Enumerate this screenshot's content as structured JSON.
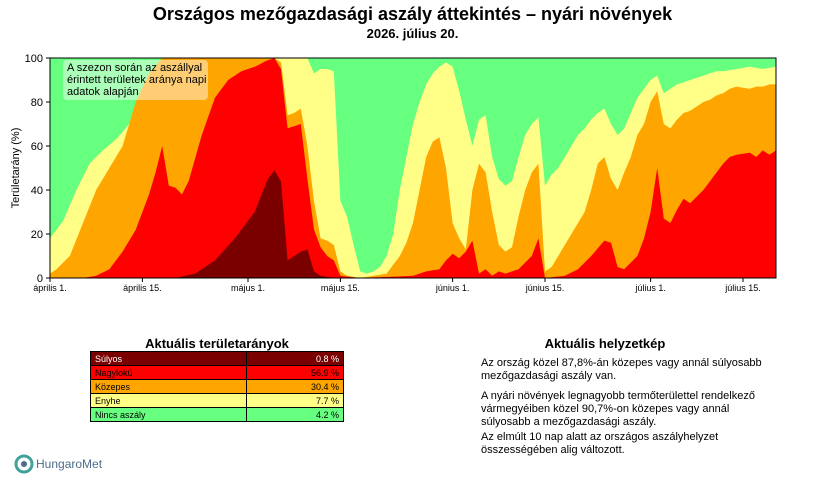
{
  "header": {
    "title": "Országos mezőgazdasági aszály áttekintés – nyári növények",
    "date": "2026. július 20."
  },
  "chart_data": {
    "type": "area",
    "stacked": true,
    "ylabel": "Területarány (%)",
    "ylim": [
      0,
      100
    ],
    "yticks": [
      0,
      20,
      40,
      60,
      80,
      100
    ],
    "xticks": [
      {
        "day": 1,
        "label": "április 1."
      },
      {
        "day": 15,
        "label": "április 15."
      },
      {
        "day": 31,
        "label": "május 1."
      },
      {
        "day": 45,
        "label": "május 15."
      },
      {
        "day": 62,
        "label": "június 1."
      },
      {
        "day": 76,
        "label": "június 15."
      },
      {
        "day": 92,
        "label": "július 1."
      },
      {
        "day": 106,
        "label": "július 15."
      }
    ],
    "annotation": "A szezon során az aszállyal érintett területek aránya napi adatok alapján",
    "x_start": 1,
    "x_end": 111,
    "series": [
      {
        "name": "Súlyos",
        "color": "#7a0000",
        "knots": [
          [
            1,
            0
          ],
          [
            20,
            0
          ],
          [
            23,
            2
          ],
          [
            26,
            8
          ],
          [
            29,
            18
          ],
          [
            32,
            30
          ],
          [
            34,
            45
          ],
          [
            35,
            49
          ],
          [
            36,
            44
          ],
          [
            37,
            8
          ],
          [
            39,
            12
          ],
          [
            40,
            13
          ],
          [
            41,
            3
          ],
          [
            42,
            1
          ],
          [
            44,
            0
          ],
          [
            111,
            0
          ]
        ]
      },
      {
        "name": "Nagyloku",
        "color": "#ff0000",
        "knots": [
          [
            1,
            0
          ],
          [
            6,
            0
          ],
          [
            8,
            1
          ],
          [
            10,
            4
          ],
          [
            12,
            12
          ],
          [
            14,
            22
          ],
          [
            16,
            38
          ],
          [
            17,
            48
          ],
          [
            18,
            60
          ],
          [
            19,
            42
          ],
          [
            20,
            41
          ],
          [
            21,
            38
          ],
          [
            22,
            44
          ],
          [
            24,
            65
          ],
          [
            26,
            82
          ],
          [
            28,
            90
          ],
          [
            30,
            94
          ],
          [
            32,
            96
          ],
          [
            34,
            99
          ],
          [
            35,
            100
          ],
          [
            36,
            95
          ],
          [
            37,
            68
          ],
          [
            38,
            69
          ],
          [
            39,
            70
          ],
          [
            40,
            45
          ],
          [
            41,
            22
          ],
          [
            42,
            14
          ],
          [
            43,
            10
          ],
          [
            44,
            8
          ],
          [
            45,
            1
          ],
          [
            48,
            0
          ],
          [
            56,
            1
          ],
          [
            58,
            3
          ],
          [
            60,
            4
          ],
          [
            61,
            8
          ],
          [
            62,
            11
          ],
          [
            63,
            9
          ],
          [
            64,
            12
          ],
          [
            65,
            17
          ],
          [
            66,
            2
          ],
          [
            67,
            4
          ],
          [
            68,
            1
          ],
          [
            69,
            3
          ],
          [
            70,
            2
          ],
          [
            72,
            4
          ],
          [
            74,
            10
          ],
          [
            75,
            18
          ],
          [
            76,
            0
          ],
          [
            79,
            1
          ],
          [
            81,
            4
          ],
          [
            83,
            10
          ],
          [
            85,
            17
          ],
          [
            86,
            16
          ],
          [
            87,
            5
          ],
          [
            88,
            4
          ],
          [
            90,
            10
          ],
          [
            91,
            18
          ],
          [
            92,
            30
          ],
          [
            93,
            50
          ],
          [
            94,
            27
          ],
          [
            95,
            25
          ],
          [
            96,
            31
          ],
          [
            97,
            36
          ],
          [
            98,
            34
          ],
          [
            99,
            37
          ],
          [
            100,
            40
          ],
          [
            101,
            44
          ],
          [
            102,
            48
          ],
          [
            103,
            52
          ],
          [
            104,
            55
          ],
          [
            105,
            56
          ],
          [
            107,
            57
          ],
          [
            108,
            55
          ],
          [
            109,
            58
          ],
          [
            110,
            56
          ],
          [
            111,
            58
          ]
        ]
      },
      {
        "name": "Közepes",
        "color": "#ffa500",
        "knots": [
          [
            1,
            2
          ],
          [
            2,
            4
          ],
          [
            4,
            10
          ],
          [
            6,
            25
          ],
          [
            8,
            40
          ],
          [
            10,
            50
          ],
          [
            12,
            60
          ],
          [
            14,
            80
          ],
          [
            16,
            93
          ],
          [
            18,
            100
          ],
          [
            35,
            100
          ],
          [
            36,
            98
          ],
          [
            37,
            74
          ],
          [
            38,
            75
          ],
          [
            39,
            77
          ],
          [
            40,
            60
          ],
          [
            41,
            35
          ],
          [
            42,
            18
          ],
          [
            43,
            17
          ],
          [
            44,
            15
          ],
          [
            45,
            3
          ],
          [
            46,
            1
          ],
          [
            48,
            0
          ],
          [
            52,
            2
          ],
          [
            53,
            6
          ],
          [
            54,
            10
          ],
          [
            55,
            16
          ],
          [
            56,
            25
          ],
          [
            57,
            40
          ],
          [
            58,
            55
          ],
          [
            59,
            62
          ],
          [
            60,
            64
          ],
          [
            61,
            50
          ],
          [
            62,
            25
          ],
          [
            63,
            18
          ],
          [
            64,
            13
          ],
          [
            65,
            40
          ],
          [
            66,
            52
          ],
          [
            67,
            48
          ],
          [
            68,
            30
          ],
          [
            69,
            15
          ],
          [
            70,
            12
          ],
          [
            71,
            14
          ],
          [
            72,
            28
          ],
          [
            73,
            40
          ],
          [
            74,
            48
          ],
          [
            75,
            52
          ],
          [
            76,
            3
          ],
          [
            77,
            5
          ],
          [
            78,
            10
          ],
          [
            79,
            15
          ],
          [
            80,
            20
          ],
          [
            81,
            25
          ],
          [
            82,
            30
          ],
          [
            83,
            40
          ],
          [
            84,
            52
          ],
          [
            85,
            55
          ],
          [
            86,
            45
          ],
          [
            87,
            40
          ],
          [
            88,
            48
          ],
          [
            89,
            55
          ],
          [
            90,
            65
          ],
          [
            91,
            70
          ],
          [
            92,
            80
          ],
          [
            93,
            85
          ],
          [
            94,
            70
          ],
          [
            95,
            68
          ],
          [
            96,
            72
          ],
          [
            97,
            75
          ],
          [
            98,
            76
          ],
          [
            99,
            78
          ],
          [
            100,
            80
          ],
          [
            101,
            81
          ],
          [
            102,
            83
          ],
          [
            103,
            84
          ],
          [
            104,
            86
          ],
          [
            105,
            87
          ],
          [
            107,
            86
          ],
          [
            108,
            87
          ],
          [
            109,
            87
          ],
          [
            110,
            88
          ],
          [
            111,
            88
          ]
        ]
      },
      {
        "name": "Enyhe",
        "color": "#ffff88",
        "knots": [
          [
            1,
            18
          ],
          [
            3,
            26
          ],
          [
            5,
            40
          ],
          [
            7,
            52
          ],
          [
            9,
            58
          ],
          [
            11,
            63
          ],
          [
            13,
            70
          ],
          [
            15,
            78
          ],
          [
            17,
            85
          ],
          [
            19,
            92
          ],
          [
            21,
            96
          ],
          [
            23,
            100
          ],
          [
            40,
            100
          ],
          [
            41,
            93
          ],
          [
            42,
            95
          ],
          [
            43,
            95
          ],
          [
            44,
            94
          ],
          [
            45,
            35
          ],
          [
            46,
            28
          ],
          [
            47,
            15
          ],
          [
            48,
            3
          ],
          [
            49,
            2
          ],
          [
            50,
            3
          ],
          [
            51,
            5
          ],
          [
            52,
            10
          ],
          [
            53,
            20
          ],
          [
            54,
            40
          ],
          [
            55,
            55
          ],
          [
            56,
            70
          ],
          [
            57,
            80
          ],
          [
            58,
            88
          ],
          [
            59,
            93
          ],
          [
            60,
            96
          ],
          [
            61,
            98
          ],
          [
            62,
            96
          ],
          [
            63,
            85
          ],
          [
            64,
            72
          ],
          [
            65,
            60
          ],
          [
            66,
            72
          ],
          [
            67,
            74
          ],
          [
            68,
            55
          ],
          [
            69,
            45
          ],
          [
            70,
            42
          ],
          [
            71,
            44
          ],
          [
            72,
            55
          ],
          [
            73,
            65
          ],
          [
            74,
            70
          ],
          [
            75,
            73
          ],
          [
            76,
            42
          ],
          [
            77,
            47
          ],
          [
            78,
            50
          ],
          [
            79,
            55
          ],
          [
            80,
            60
          ],
          [
            81,
            65
          ],
          [
            82,
            68
          ],
          [
            83,
            72
          ],
          [
            84,
            75
          ],
          [
            85,
            77
          ],
          [
            86,
            70
          ],
          [
            87,
            65
          ],
          [
            88,
            68
          ],
          [
            89,
            75
          ],
          [
            90,
            82
          ],
          [
            91,
            86
          ],
          [
            92,
            90
          ],
          [
            93,
            92
          ],
          [
            94,
            84
          ],
          [
            95,
            86
          ],
          [
            96,
            88
          ],
          [
            97,
            89
          ],
          [
            98,
            90
          ],
          [
            99,
            91
          ],
          [
            100,
            92
          ],
          [
            101,
            93
          ],
          [
            102,
            94
          ],
          [
            103,
            94
          ],
          [
            105,
            95
          ],
          [
            107,
            96
          ],
          [
            109,
            95
          ],
          [
            111,
            96
          ]
        ]
      },
      {
        "name": "Nincs aszály",
        "color": "#66ff80",
        "knots": [
          [
            1,
            100
          ],
          [
            111,
            100
          ]
        ]
      }
    ]
  },
  "table": {
    "title": "Aktuális területarányok",
    "rows": [
      {
        "label": "Súlyos",
        "value": "0.8 %",
        "bg": "#7a0000",
        "fg": "#ffffff"
      },
      {
        "label": "Nagylokü",
        "value": "56.9 %",
        "bg": "#ff0000",
        "fg": "#000000"
      },
      {
        "label": "Közepes",
        "value": "30.4 %",
        "bg": "#ffa500",
        "fg": "#000000"
      },
      {
        "label": "Enyhe",
        "value": "7.7 %",
        "bg": "#ffff88",
        "fg": "#000000"
      },
      {
        "label": "Nincs aszály",
        "value": "4.2 %",
        "bg": "#66ff80",
        "fg": "#000000"
      }
    ]
  },
  "status": {
    "title": "Aktuális helyzetkép",
    "p1": "Az ország közel 87,8%-án közepes vagy annál súlyosabb mezőgazdasági aszály van.",
    "p2": "A nyári növények legnagyobb termőterülettel rendelkező vármegyéiben közel 90,7%-on közepes vagy annál súlyosabb a mezőgazdasági aszály.",
    "p3": "Az elmúlt 10 nap alatt az országos aszályhelyzet összességében alig változott."
  },
  "logo": {
    "text": "HungaroMet"
  }
}
